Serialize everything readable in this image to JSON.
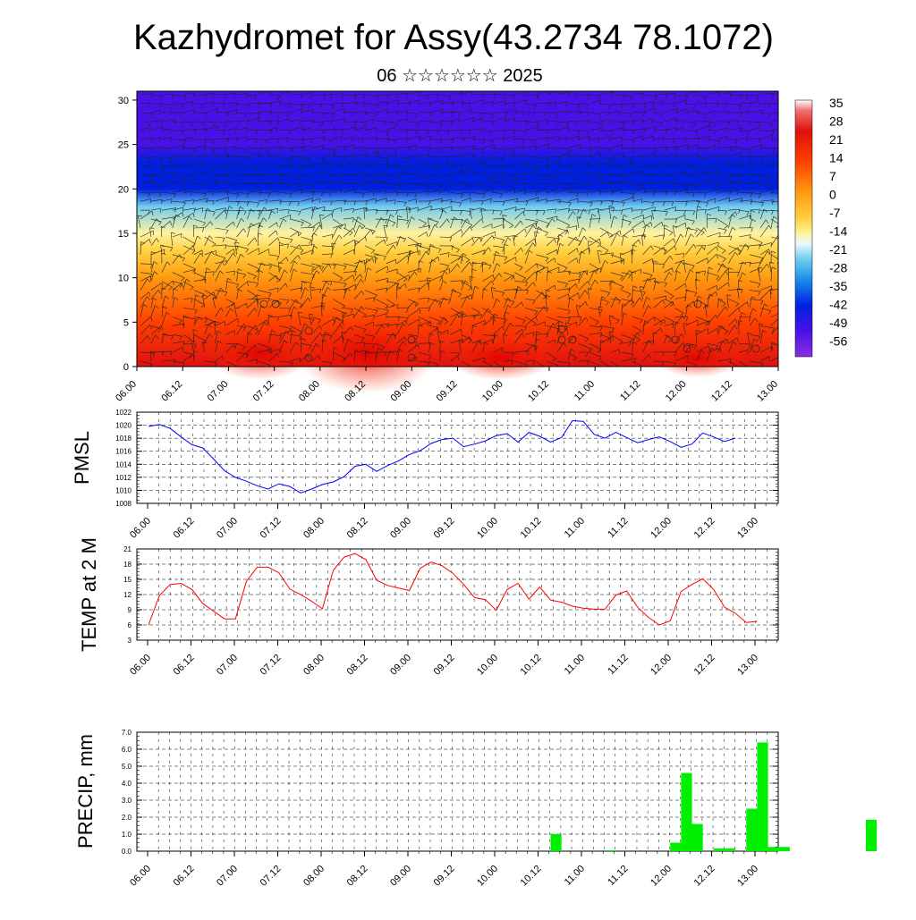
{
  "title": "Kazhydromet for Assy(43.2734 78.1072)",
  "subtitle": "06 ☆☆☆☆☆☆ 2025",
  "time_ticks": [
    "06.00",
    "06.12",
    "07.00",
    "07.12",
    "08.00",
    "08.12",
    "09.00",
    "09.12",
    "10.00",
    "10.12",
    "11.00",
    "11.12",
    "12.00",
    "12.12",
    "13.00"
  ],
  "colors": {
    "pmsl": "#0000ff",
    "temp": "#ff0000",
    "precip": "#00ee00"
  },
  "chart_data": [
    {
      "type": "heatmap",
      "title": "",
      "ylim": [
        0,
        31
      ],
      "y_ticks": [
        "0",
        "5",
        "10",
        "15",
        "20",
        "25",
        "30"
      ],
      "colorbar_labels": [
        "35",
        "28",
        "21",
        "14",
        "7",
        "0",
        "-7",
        "-14",
        "-21",
        "-28",
        "-35",
        "-42",
        "-49",
        "-56"
      ],
      "levels": [
        0,
        5,
        10,
        13,
        15,
        18,
        20,
        23,
        25,
        28,
        31
      ],
      "temperature_profile": [
        20,
        14,
        9,
        3,
        -7,
        -25,
        -38,
        -50,
        -58,
        -60,
        -60
      ],
      "overlay": "wind barbs"
    },
    {
      "type": "line",
      "ylabel": "PMSL",
      "ylim": [
        1008,
        1022
      ],
      "y_ticks": [
        "1008",
        "1010",
        "1012",
        "1014",
        "1016",
        "1018",
        "1020",
        "1022"
      ],
      "series": [
        {
          "values": [
            1019.8,
            1020.1,
            1019.5,
            1018.2,
            1017.0,
            1016.5,
            1014.8,
            1013.0,
            1012.0,
            1011.4,
            1010.7,
            1010.2,
            1011.0,
            1010.6,
            1009.6,
            1010.2,
            1010.9,
            1011.3,
            1012.1,
            1013.7,
            1014.0,
            1012.9,
            1013.8,
            1014.5,
            1015.5,
            1016.1,
            1017.2,
            1017.8,
            1018.0,
            1016.7,
            1017.1,
            1017.6,
            1018.4,
            1018.7,
            1017.4,
            1018.9,
            1018.3,
            1017.4,
            1018.1,
            1020.7,
            1020.6,
            1018.6,
            1018.0,
            1018.9,
            1018.1,
            1017.3,
            1017.8,
            1018.2,
            1017.5,
            1016.6,
            1017.1,
            1018.8,
            1018.2,
            1017.5,
            1018.0
          ]
        }
      ]
    },
    {
      "type": "line",
      "ylabel": "TEMP at 2 M",
      "ylim": [
        3,
        21
      ],
      "y_ticks": [
        "3",
        "6",
        "9",
        "12",
        "15",
        "18",
        "21"
      ],
      "series": [
        {
          "values": [
            6.0,
            11.8,
            14.0,
            14.2,
            13.0,
            10.2,
            8.7,
            7.2,
            7.2,
            14.6,
            17.4,
            17.4,
            16.3,
            13.1,
            12.0,
            10.7,
            9.2,
            16.8,
            19.4,
            20.1,
            18.9,
            14.8,
            13.8,
            13.3,
            12.8,
            17.2,
            18.4,
            17.7,
            16.2,
            14.0,
            11.4,
            11.0,
            8.9,
            13.0,
            14.2,
            11.1,
            13.5,
            10.9,
            10.5,
            9.7,
            9.3,
            9.1,
            9.1,
            11.9,
            12.7,
            9.5,
            7.5,
            6.0,
            6.8,
            12.6,
            14.0,
            15.1,
            13.0,
            9.5,
            8.3,
            6.5,
            6.7
          ]
        }
      ]
    },
    {
      "type": "bar",
      "ylabel": "PRECIP, mm",
      "ylim": [
        0,
        7
      ],
      "y_ticks": [
        "0.0",
        "1.0",
        "2.0",
        "3.0",
        "4.0",
        "5.0",
        "6.0",
        "7.0"
      ],
      "bars": [
        {
          "t": 37.5,
          "v": 1.0
        },
        {
          "t": 42.5,
          "v": 0.05
        },
        {
          "t": 48.5,
          "v": 0.5
        },
        {
          "t": 49.5,
          "v": 4.6
        },
        {
          "t": 50.5,
          "v": 1.6
        },
        {
          "t": 52.5,
          "v": 0.15
        },
        {
          "t": 53.5,
          "v": 0.15
        },
        {
          "t": 55.5,
          "v": 2.5
        },
        {
          "t": 56.5,
          "v": 6.4
        },
        {
          "t": 57.5,
          "v": 0.25
        },
        {
          "t": 58.5,
          "v": 0.25
        },
        {
          "t": 66.5,
          "v": 1.85
        }
      ]
    }
  ]
}
